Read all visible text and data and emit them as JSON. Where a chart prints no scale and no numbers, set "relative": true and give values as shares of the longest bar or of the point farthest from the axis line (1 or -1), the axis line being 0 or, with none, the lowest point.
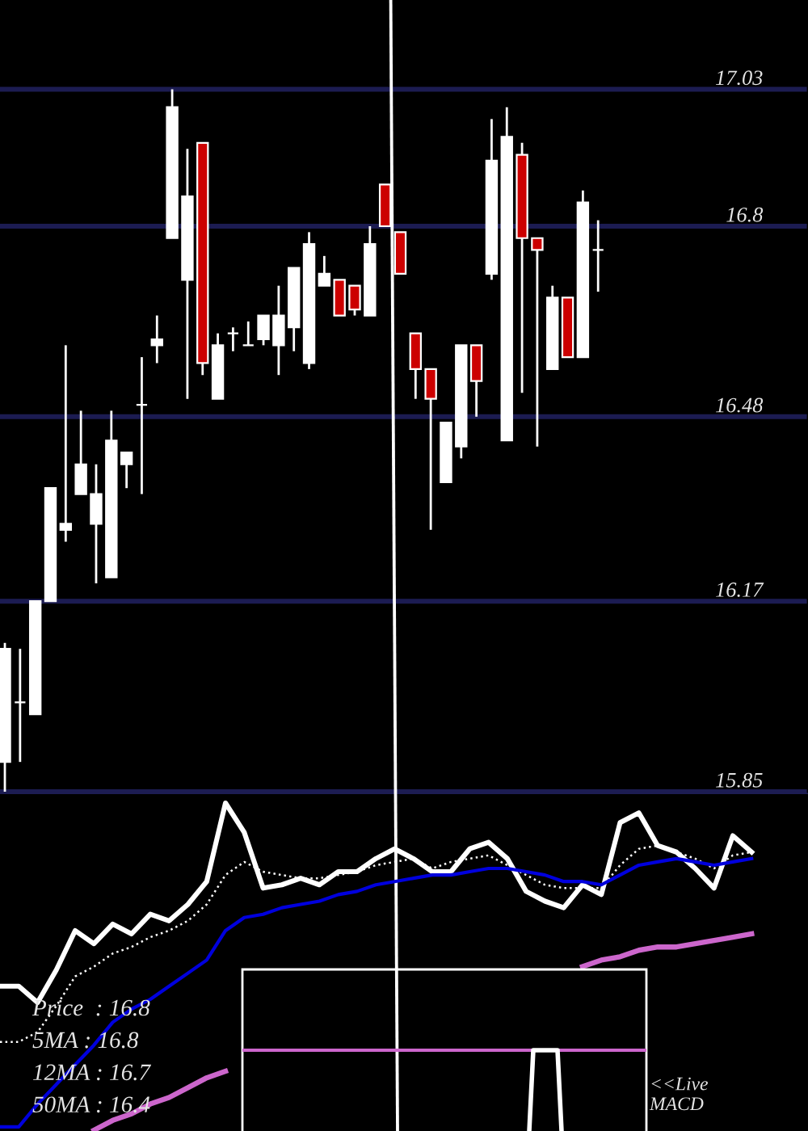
{
  "chart_data": [
    {
      "type": "candlestick",
      "categories": [
        null,
        null,
        null,
        null,
        null,
        null,
        null,
        null,
        null,
        null,
        null,
        null,
        null,
        null,
        null,
        null,
        null,
        null,
        null,
        null,
        null,
        null,
        null,
        null,
        null,
        null,
        null,
        null,
        null,
        null,
        null,
        null,
        null,
        null,
        null,
        null,
        null,
        null,
        null,
        null
      ],
      "ohlc": [
        [
          15.9,
          16.1,
          15.85,
          16.09
        ],
        [
          16.0,
          16.09,
          15.9,
          16.0
        ],
        [
          15.98,
          16.17,
          15.98,
          16.17
        ],
        [
          16.17,
          16.36,
          16.17,
          16.36
        ],
        [
          16.29,
          16.6,
          16.27,
          16.3
        ],
        [
          16.35,
          16.49,
          16.35,
          16.4
        ],
        [
          16.3,
          16.4,
          16.2,
          16.35
        ],
        [
          16.21,
          16.49,
          16.21,
          16.44
        ],
        [
          16.4,
          16.42,
          16.36,
          16.42
        ],
        [
          16.5,
          16.58,
          16.35,
          16.5
        ],
        [
          16.6,
          16.65,
          16.57,
          16.61
        ],
        [
          16.78,
          17.03,
          16.78,
          17.0
        ],
        [
          16.71,
          16.93,
          16.51,
          16.85
        ],
        [
          16.94,
          16.94,
          16.55,
          16.57
        ],
        [
          16.51,
          16.62,
          16.51,
          16.6
        ],
        [
          16.62,
          16.63,
          16.59,
          16.62
        ],
        [
          16.6,
          16.64,
          16.6,
          16.6
        ],
        [
          16.61,
          16.65,
          16.6,
          16.65
        ],
        [
          16.6,
          16.7,
          16.55,
          16.65
        ],
        [
          16.63,
          16.73,
          16.59,
          16.73
        ],
        [
          16.57,
          16.79,
          16.56,
          16.77
        ],
        [
          16.7,
          16.75,
          16.7,
          16.72
        ],
        [
          16.71,
          16.71,
          16.65,
          16.65
        ],
        [
          16.7,
          16.7,
          16.65,
          16.66
        ],
        [
          16.65,
          16.8,
          16.65,
          16.77
        ],
        [
          16.87,
          16.87,
          16.8,
          16.8
        ],
        [
          16.79,
          16.79,
          16.72,
          16.72
        ],
        [
          16.62,
          16.62,
          16.51,
          16.56
        ],
        [
          16.56,
          16.56,
          16.29,
          16.51
        ],
        [
          16.37,
          16.47,
          16.37,
          16.47
        ],
        [
          16.43,
          16.6,
          16.41,
          16.6
        ],
        [
          16.6,
          16.6,
          16.48,
          16.54
        ],
        [
          16.72,
          16.98,
          16.71,
          16.91
        ],
        [
          16.44,
          17.0,
          16.44,
          16.95
        ],
        [
          16.92,
          16.94,
          16.52,
          16.78
        ],
        [
          16.78,
          16.78,
          16.43,
          16.76
        ],
        [
          16.56,
          16.7,
          16.56,
          16.68
        ],
        [
          16.68,
          16.68,
          16.58,
          16.58
        ],
        [
          16.58,
          16.86,
          16.58,
          16.84
        ],
        [
          16.76,
          16.81,
          16.69,
          16.76
        ]
      ],
      "colors": [
        "#ffffff",
        "#ffffff",
        "#ffffff",
        "#ffffff",
        "#ffffff",
        "#ffffff",
        "#ffffff",
        "#ffffff",
        "#ffffff",
        "#ffffff",
        "#ffffff",
        "#ffffff",
        "#ffffff",
        "#cc0000",
        "#ffffff",
        "#ffffff",
        "#ffffff",
        "#ffffff",
        "#ffffff",
        "#ffffff",
        "#ffffff",
        "#ffffff",
        "#cc0000",
        "#cc0000",
        "#ffffff",
        "#cc0000",
        "#cc0000",
        "#cc0000",
        "#cc0000",
        "#ffffff",
        "#ffffff",
        "#cc0000",
        "#ffffff",
        "#ffffff",
        "#cc0000",
        "#cc0000",
        "#ffffff",
        "#cc0000",
        "#ffffff",
        "#ffffff"
      ],
      "ylim": [
        15.85,
        17.18
      ],
      "yticks": [
        15.85,
        16.17,
        16.48,
        16.8,
        17.03
      ],
      "grid": "y",
      "tick_labels": "y"
    },
    {
      "type": "line",
      "relative": true,
      "categories": [
        null,
        null,
        null,
        null,
        null,
        null,
        null,
        null,
        null,
        null,
        null,
        null,
        null,
        null,
        null,
        null,
        null,
        null,
        null,
        null,
        null,
        null,
        null,
        null,
        null,
        null,
        null,
        null,
        null,
        null,
        null,
        null,
        null,
        null,
        null,
        null,
        null,
        null,
        null,
        null,
        null
      ],
      "series": [
        {
          "color": "#ffffff",
          "line_style": "solid",
          "values": [
            0.44,
            0.44,
            0.39,
            0.49,
            0.61,
            0.57,
            0.63,
            0.6,
            0.66,
            0.64,
            0.69,
            0.76,
            1,
            0.91,
            0.74,
            0.75,
            0.77,
            0.75,
            0.79,
            0.79,
            0.83,
            0.86,
            0.83,
            0.79,
            0.79,
            0.86,
            0.88,
            0.83,
            0.73,
            0.7,
            0.68,
            0.75,
            0.72,
            0.94,
            0.97,
            0.87,
            0.85,
            0.8,
            0.74,
            0.9,
            0.85
          ]
        },
        {
          "color": "#ffffff",
          "line_style": "dotted",
          "values": [
            0.27,
            0.27,
            0.3,
            0.38,
            0.47,
            0.5,
            0.54,
            0.56,
            0.59,
            0.61,
            0.64,
            0.69,
            0.78,
            0.82,
            0.79,
            0.78,
            0.77,
            0.77,
            0.78,
            0.79,
            0.81,
            0.82,
            0.83,
            0.8,
            0.82,
            0.83,
            0.84,
            0.81,
            0.78,
            0.75,
            0.74,
            0.74,
            0.74,
            0.81,
            0.86,
            0.87,
            0.85,
            0.83,
            0.8,
            0.84,
            0.85
          ]
        },
        {
          "color": "#0000dd",
          "line_style": "solid",
          "values": [
            0.01,
            0.01,
            0.08,
            0.14,
            0.2,
            0.26,
            0.33,
            0.37,
            0.4,
            0.44,
            0.48,
            0.52,
            0.61,
            0.65,
            0.66,
            0.68,
            0.69,
            0.7,
            0.72,
            0.73,
            0.75,
            0.76,
            0.77,
            0.78,
            0.78,
            0.79,
            0.8,
            0.8,
            0.79,
            0.78,
            0.76,
            0.76,
            0.75,
            0.78,
            0.81,
            0.82,
            0.83,
            0.82,
            0.81,
            0.82,
            0.83
          ]
        },
        {
          "color": "#cc66cc",
          "line_style": "solid",
          "values": [
            null,
            null,
            null,
            null,
            null,
            0,
            0.03,
            0.05,
            0.08,
            0.1,
            0.13,
            0.16,
            0.18,
            null,
            null,
            null,
            null,
            null,
            null,
            null,
            null,
            null,
            null,
            null,
            null,
            null,
            null,
            null,
            null,
            null,
            null,
            0.5,
            0.52,
            0.53,
            0.55,
            0.56,
            0.56,
            0.57,
            0.58,
            0.59,
            0.6
          ]
        }
      ],
      "annotations": [
        "Price  : 16.8",
        "5MA : 16.8",
        "12MA : 16.7",
        "50MA : 16.4"
      ]
    },
    {
      "type": "line",
      "relative": true,
      "categories": [
        null,
        null,
        null,
        null,
        null,
        null,
        null,
        null,
        null,
        null,
        null,
        null,
        null,
        null,
        null,
        null,
        null,
        null,
        null,
        null,
        null,
        null,
        null,
        null,
        null,
        null,
        null,
        null,
        null,
        null,
        null,
        null,
        null,
        null,
        null,
        null,
        null,
        null,
        null,
        null,
        null,
        null,
        null,
        null,
        null,
        null,
        null,
        null,
        null,
        null,
        null,
        null,
        null,
        null,
        null,
        null,
        null,
        null,
        null,
        null,
        null,
        null,
        null,
        null,
        null,
        null,
        null,
        null,
        null,
        null,
        null,
        null,
        null,
        null,
        null,
        null,
        null,
        null,
        null,
        null,
        null,
        null,
        null,
        null,
        null,
        null,
        null,
        null,
        null,
        null,
        null,
        null,
        null,
        null,
        null,
        null,
        null,
        null,
        null,
        null,
        null
      ],
      "series": [
        {
          "color": "#cc66cc",
          "values": [
            1,
            1,
            1,
            1,
            1,
            1,
            1,
            1,
            1,
            1,
            1,
            1,
            1,
            1,
            1,
            1,
            1,
            1,
            1,
            1,
            1,
            1,
            1,
            1,
            1,
            1,
            1,
            1,
            1,
            1,
            1,
            1,
            1,
            1,
            1,
            1,
            1,
            1,
            1,
            1,
            1,
            1,
            1,
            1,
            1,
            1,
            1,
            1,
            1,
            1,
            1,
            1,
            1,
            1,
            1,
            1,
            1,
            1,
            1,
            1,
            1,
            1,
            1,
            1,
            1,
            1,
            1,
            1,
            1,
            1,
            1,
            1,
            1,
            1,
            1,
            1,
            1,
            1,
            1,
            1,
            1,
            1,
            1,
            1,
            1,
            1,
            1,
            1,
            1,
            1,
            1,
            1,
            1,
            1,
            1,
            1,
            1,
            1,
            1,
            1,
            1
          ]
        },
        {
          "color": "#ffffff",
          "values": [
            null,
            null,
            null,
            null,
            null,
            null,
            null,
            null,
            null,
            null,
            null,
            null,
            null,
            null,
            null,
            null,
            null,
            null,
            null,
            null,
            null,
            null,
            null,
            null,
            null,
            null,
            null,
            null,
            null,
            null,
            null,
            null,
            null,
            null,
            null,
            null,
            null,
            null,
            null,
            null,
            null,
            null,
            null,
            null,
            null,
            null,
            null,
            null,
            null,
            null,
            null,
            null,
            null,
            null,
            null,
            null,
            null,
            null,
            null,
            null,
            null,
            null,
            null,
            null,
            null,
            null,
            null,
            null,
            null,
            null,
            null,
            0,
            1,
            1,
            1,
            1,
            1,
            1,
            1,
            0,
            null,
            null,
            null,
            null,
            null,
            null,
            null,
            null,
            null,
            null,
            null,
            null,
            null,
            null,
            null,
            null,
            null,
            null,
            null,
            null,
            null
          ]
        }
      ],
      "annotations": [
        "<<Live\nMACD"
      ]
    }
  ]
}
